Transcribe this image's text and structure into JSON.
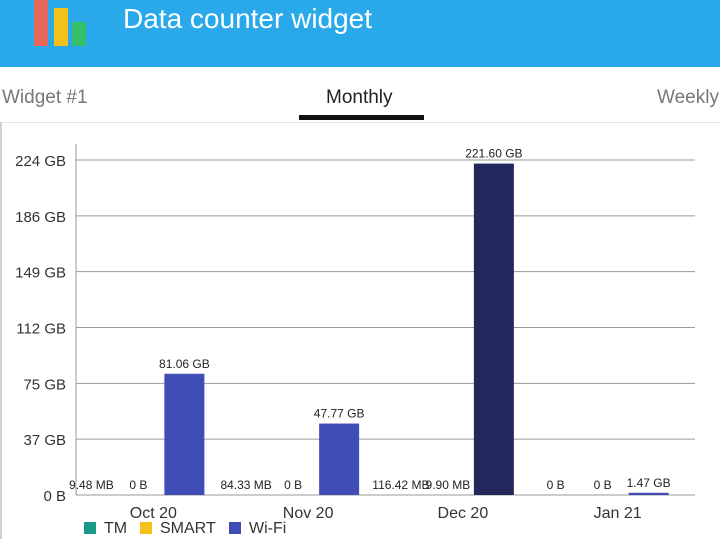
{
  "app": {
    "title": "Data counter widget"
  },
  "tabs": [
    {
      "label": "Widget #1",
      "active": false
    },
    {
      "label": "Monthly",
      "active": true
    },
    {
      "label": "Weekly",
      "active": false
    }
  ],
  "colors": {
    "app_bar": "#29a9ea",
    "tm": "#1a9a86",
    "smart": "#f4c01c",
    "wifi": "#3f4db5",
    "wifi_selected": "#22275c"
  },
  "chart_data": {
    "type": "bar",
    "categories": [
      "Oct 20",
      "Nov 20",
      "Dec 20",
      "Jan 21"
    ],
    "y_ticks": [
      "0 B",
      "37 GB",
      "75 GB",
      "112 GB",
      "149 GB",
      "186 GB",
      "224 GB"
    ],
    "ylim": [
      0,
      224
    ],
    "y_unit": "GB",
    "series": [
      {
        "name": "TM",
        "values": [
          0.00948,
          0.08433,
          0.11642,
          0
        ],
        "labels": [
          "9.48 MB",
          "84.33 MB",
          "116.42 MB",
          "0 B"
        ]
      },
      {
        "name": "SMART",
        "values": [
          0,
          0,
          0.0099,
          0
        ],
        "labels": [
          "0 B",
          "0 B",
          "9.90 MB",
          "0 B"
        ]
      },
      {
        "name": "Wi-Fi",
        "values": [
          81.06,
          47.77,
          221.6,
          1.47
        ],
        "labels": [
          "81.06 GB",
          "47.77 GB",
          "221.60 GB",
          "1.47 GB"
        ]
      }
    ],
    "highlighted": {
      "series": "Wi-Fi",
      "category": "Dec 20"
    },
    "grid": true,
    "legend_position": "bottom-left"
  },
  "legend": [
    {
      "name": "TM",
      "color": "#1a9a86"
    },
    {
      "name": "SMART",
      "color": "#f4c01c"
    },
    {
      "name": "Wi-Fi",
      "color": "#3f4db5"
    }
  ]
}
